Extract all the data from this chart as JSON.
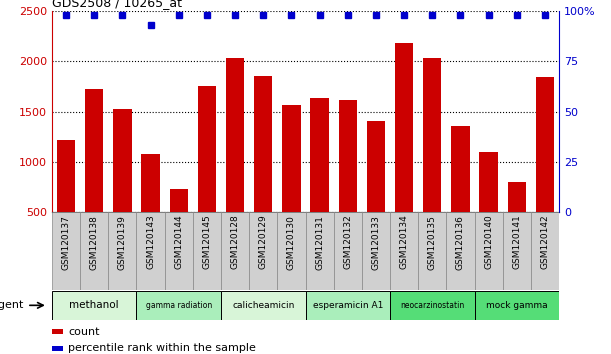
{
  "title": "GDS2508 / 10265_at",
  "samples": [
    "GSM120137",
    "GSM120138",
    "GSM120139",
    "GSM120143",
    "GSM120144",
    "GSM120145",
    "GSM120128",
    "GSM120129",
    "GSM120130",
    "GSM120131",
    "GSM120132",
    "GSM120133",
    "GSM120134",
    "GSM120135",
    "GSM120136",
    "GSM120140",
    "GSM120141",
    "GSM120142"
  ],
  "counts": [
    1220,
    1720,
    1520,
    1080,
    730,
    1750,
    2030,
    1850,
    1560,
    1630,
    1610,
    1410,
    2180,
    2030,
    1360,
    1100,
    800,
    1840
  ],
  "percentiles": [
    98,
    98,
    98,
    93,
    98,
    98,
    98,
    98,
    98,
    98,
    98,
    98,
    98,
    98,
    98,
    98,
    98,
    98
  ],
  "bar_color": "#cc0000",
  "dot_color": "#0000cc",
  "ylim_left": [
    500,
    2500
  ],
  "ylim_right": [
    0,
    100
  ],
  "yticks_left": [
    500,
    1000,
    1500,
    2000,
    2500
  ],
  "yticks_right": [
    0,
    25,
    50,
    75,
    100
  ],
  "yticklabels_right": [
    "0",
    "25",
    "50",
    "75",
    "100%"
  ],
  "agent_groups": [
    {
      "label": "methanol",
      "start": 0,
      "end": 2,
      "color": "#d8f5d8"
    },
    {
      "label": "gamma radiation",
      "start": 3,
      "end": 5,
      "color": "#aaeebb"
    },
    {
      "label": "calicheamicin",
      "start": 6,
      "end": 8,
      "color": "#d8f5d8"
    },
    {
      "label": "esperamicin A1",
      "start": 9,
      "end": 11,
      "color": "#aaeebb"
    },
    {
      "label": "neocarzinostatin",
      "start": 12,
      "end": 14,
      "color": "#55dd77"
    },
    {
      "label": "mock gamma",
      "start": 15,
      "end": 17,
      "color": "#55dd77"
    }
  ],
  "agent_label": "agent",
  "legend_count_label": "count",
  "legend_pct_label": "percentile rank within the sample",
  "bar_color_left": "#cc0000",
  "tick_label_color_left": "#cc0000",
  "tick_label_color_right": "#0000cc",
  "xtick_bg": "#d0d0d0",
  "xtick_border": "#888888"
}
